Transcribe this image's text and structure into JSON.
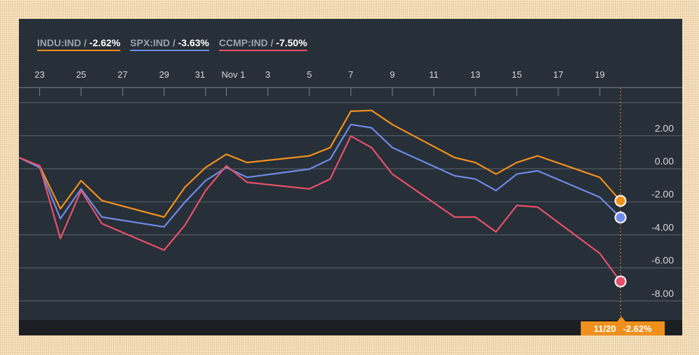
{
  "legend": {
    "items": [
      {
        "name": "INDU:IND /",
        "value": "-2.62%"
      },
      {
        "name": "SPX:IND /",
        "value": "-3.63%"
      },
      {
        "name": "CCMP:IND /",
        "value": "-7.50%"
      }
    ]
  },
  "tooltip": {
    "date": "11/20",
    "value": "-2.62%"
  },
  "colors": {
    "indu": "#f0901c",
    "spx": "#6f8ae8",
    "ccmp": "#e8506a",
    "background": "#272f38",
    "grid": "#5b636c"
  },
  "chart_data": {
    "type": "line",
    "x_tick_labels": [
      "23",
      "25",
      "27",
      "29",
      "31",
      "Nov 1",
      "3",
      "5",
      "7",
      "9",
      "11",
      "13",
      "15",
      "17",
      "19"
    ],
    "x_tick_dates": [
      "2018-10-23",
      "2018-10-25",
      "2018-10-27",
      "2018-10-29",
      "2018-10-31",
      "2018-11-01",
      "2018-11-03",
      "2018-11-05",
      "2018-11-07",
      "2018-11-09",
      "2018-11-11",
      "2018-11-13",
      "2018-11-15",
      "2018-11-17",
      "2018-11-19"
    ],
    "x": [
      "2018-10-22",
      "2018-10-23",
      "2018-10-24",
      "2018-10-25",
      "2018-10-26",
      "2018-10-29",
      "2018-10-30",
      "2018-10-31",
      "2018-11-01",
      "2018-11-02",
      "2018-11-05",
      "2018-11-06",
      "2018-11-07",
      "2018-11-08",
      "2018-11-09",
      "2018-11-12",
      "2018-11-13",
      "2018-11-14",
      "2018-11-15",
      "2018-11-16",
      "2018-11-19",
      "2018-11-20"
    ],
    "y_tick_labels": [
      "2.00",
      "0.00",
      "-2.00",
      "-4.00",
      "-6.00",
      "-8.00"
    ],
    "y_ticks": [
      2,
      0,
      -2,
      -4,
      -6,
      -8
    ],
    "ylim": [
      -8.8,
      3.9
    ],
    "series": [
      {
        "name": "INDU:IND",
        "color": "#f0901c",
        "values": [
          0,
          -0.5,
          -3.1,
          -1.4,
          -2.6,
          -3.6,
          -1.8,
          -0.6,
          0.2,
          -0.3,
          0.1,
          0.6,
          2.8,
          2.85,
          2.0,
          0.0,
          -0.3,
          -1.0,
          -0.3,
          0.1,
          -1.2,
          -2.62
        ]
      },
      {
        "name": "SPX:IND",
        "color": "#6f8ae8",
        "values": [
          0,
          -0.6,
          -3.7,
          -1.9,
          -3.6,
          -4.2,
          -2.7,
          -1.4,
          -0.6,
          -1.2,
          -0.7,
          -0.1,
          2.0,
          1.8,
          0.6,
          -1.1,
          -1.3,
          -2.0,
          -1.0,
          -0.8,
          -2.4,
          -3.63
        ]
      },
      {
        "name": "CCMP:IND",
        "color": "#e8506a",
        "values": [
          0,
          -0.5,
          -4.9,
          -2.0,
          -4.0,
          -5.6,
          -4.1,
          -2.0,
          -0.5,
          -1.5,
          -1.9,
          -1.3,
          1.3,
          0.6,
          -1.0,
          -3.6,
          -3.6,
          -4.5,
          -2.9,
          -3.0,
          -5.8,
          -7.5
        ]
      }
    ]
  }
}
